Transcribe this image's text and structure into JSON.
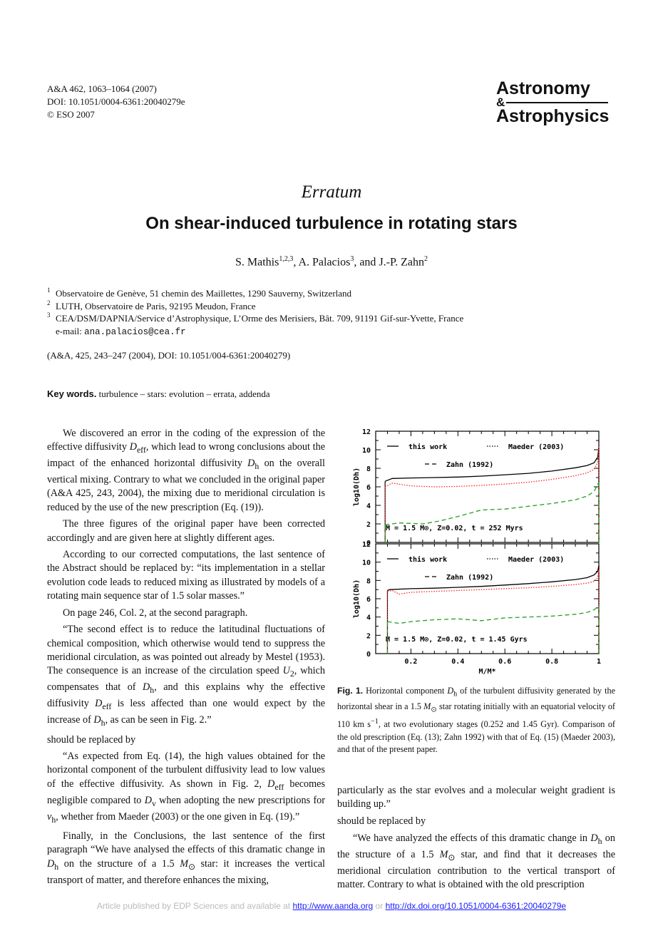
{
  "header": {
    "citation": "A&A 462, 1063–1064 (2007)",
    "doi": "DOI: 10.1051/0004-6361:20040279e",
    "copyright": "© ESO 2007",
    "journal_line1": "Astronomy",
    "journal_amp": "&",
    "journal_line2": "Astrophysics"
  },
  "section_label": "Erratum",
  "title": "On shear-induced turbulence in rotating stars",
  "authors": [
    {
      "name": "S. Mathis",
      "sup": "1,2,3",
      "sep": ", "
    },
    {
      "name": "A. Palacios",
      "sup": "3",
      "sep": ", and "
    },
    {
      "name": "J.-P. Zahn",
      "sup": "2",
      "sep": ""
    }
  ],
  "affiliations": [
    {
      "num": "1",
      "text": "Observatoire de Genève, 51 chemin des Maillettes, 1290 Sauverny, Switzerland"
    },
    {
      "num": "2",
      "text": "LUTH, Observatoire de Paris, 92195 Meudon, France"
    },
    {
      "num": "3",
      "text": "CEA/DSM/DAPNIA/Service d’Astrophysique, L’Orme des Merisiers, Bât. 709, 91191 Gif-sur-Yvette, France"
    }
  ],
  "email_label": "e-mail: ",
  "email": "ana.palacios@cea.fr",
  "original_ref": "(A&A, 425, 243–247 (2004), DOI: 10.1051/004-6361:20040279)",
  "keywords_label": "Key words.",
  "keywords": "turbulence – stars: evolution – errata, addenda",
  "left_paragraphs": [
    {
      "indent": true,
      "html": "We discovered an error in the coding of the expression of the effective diffusivity <i>D</i><sub>eff</sub>, which lead to wrong conclusions about the impact of the enhanced horizontal diffusivity <i>D</i><sub>h</sub> on the overall vertical mixing. Contrary to what we concluded in the original paper (A&amp;A 425, 243, 2004), the mixing due to meridional circulation is reduced by the use of the new prescription (Eq. (19))."
    },
    {
      "indent": true,
      "html": "The three figures of the original paper have been corrected accordingly and are given here at slightly different ages."
    },
    {
      "indent": true,
      "html": "According to our corrected computations, the last sentence of the Abstract should be replaced by: “its implementation in a stellar evolution code leads to reduced mixing as illustrated by models of a rotating main sequence star of 1.5 solar masses.”"
    },
    {
      "indent": true,
      "html": "On page 246, Col. 2, at the second paragraph."
    },
    {
      "indent": true,
      "html": "“The second effect is to reduce the latitudinal fluctuations of chemical composition, which otherwise would tend to suppress the meridional circulation, as was pointed out already by Mestel (1953). The consequence is an increase of the circulation speed <i>U</i><sub>2</sub>, which compensates that of <i>D</i><sub>h</sub>, and this explains why the effective diffusivity <i>D</i><sub>eff</sub> is less affected than one would expect by the increase of <i>D</i><sub>h</sub>, as can be seen in Fig. 2.”"
    },
    {
      "indent": false,
      "html": "should be replaced by"
    },
    {
      "indent": true,
      "html": "“As expected from Eq. (14), the high values obtained for the horizontal component of the turbulent diffusivity lead to low values of the effective diffusivity. As shown in Fig. 2, <i>D</i><sub>eff</sub> becomes negligible compared to <i>D</i><sub>v</sub> when adopting the new prescriptions for <i>ν</i><sub>h</sub>, whether from Maeder (2003) or the one given in Eq. (19).”"
    },
    {
      "indent": true,
      "html": "Finally, in the Conclusions, the last sentence of the first paragraph “We have analysed the effects of this dramatic change in <i>D</i><sub>h</sub> on the structure of a 1.5 <i>M</i><sub>⊙</sub> star: it increases the vertical transport of matter, and therefore enhances the mixing,"
    }
  ],
  "right_paragraphs": [
    {
      "indent": false,
      "html": "particularly as the star evolves and a molecular weight gradient is building up.”"
    },
    {
      "indent": false,
      "html": "should be replaced by"
    },
    {
      "indent": true,
      "html": "“We have analyzed the effects of this dramatic change in <i>D</i><sub>h</sub> on the structure of a 1.5 <i>M</i><sub>⊙</sub> star, and find that it decreases the meridional circulation contribution to the vertical transport of matter. Contrary to what is obtained with the old prescription"
    }
  ],
  "figure_caption": {
    "label": "Fig. 1.",
    "html": "Horizontal component <i>D</i><sub>h</sub> of the turbulent diffusivity generated by the horizontal shear in a 1.5 <i>M</i><sub>⊙</sub> star rotating initially with an equatorial velocity of 110 km s<sup>−1</sup>, at two evolutionary stages (0.252 and 1.45 Gyr). Comparison of the old prescription (Eq. (13); Zahn 1992) with that of Eq. (15) (Maeder 2003), and that of the present paper."
  },
  "footer": {
    "prefix": "Article published by EDP Sciences and available at ",
    "link1": "http://www.aanda.org",
    "middle": " or ",
    "link2": "http://dx.doi.org/10.1051/0004-6361:20040279e"
  },
  "chart_data": [
    {
      "type": "line",
      "xlabel": "M/M*",
      "ylabel": "log10(Dh)",
      "xlim": [
        0.05,
        1.0
      ],
      "ylim": [
        0,
        12
      ],
      "xticks": [
        "0.2",
        "0.4",
        "0.6",
        "0.8",
        "1"
      ],
      "yticks": [
        "0",
        "2",
        "4",
        "6",
        "8",
        "10",
        "12"
      ],
      "annotation": "M =  1.5 M⊙, Z=0.02, t = 252 Myrs",
      "legend": [
        {
          "label": "this work",
          "style": "solid"
        },
        {
          "label": "Maeder (2003)",
          "style": "dotted"
        },
        {
          "label": "Zahn (1992)",
          "style": "dashed"
        }
      ],
      "series": [
        {
          "name": "this work",
          "color": "#000000",
          "x": [
            0.09,
            0.12,
            0.2,
            0.3,
            0.4,
            0.5,
            0.6,
            0.7,
            0.8,
            0.9,
            0.95,
            0.98,
            0.995,
            1.0
          ],
          "y": [
            6.6,
            6.9,
            6.95,
            7.0,
            7.05,
            7.15,
            7.3,
            7.45,
            7.7,
            8.05,
            8.3,
            8.6,
            9.2,
            10.2
          ]
        },
        {
          "name": "Maeder (2003)",
          "color": "#ff2020",
          "x": [
            0.09,
            0.12,
            0.2,
            0.3,
            0.4,
            0.5,
            0.6,
            0.7,
            0.8,
            0.9,
            0.95,
            0.98,
            0.995,
            1.0
          ],
          "y": [
            6.0,
            6.4,
            6.1,
            6.0,
            6.05,
            6.15,
            6.3,
            6.5,
            6.8,
            7.2,
            7.5,
            7.9,
            8.6,
            10.3
          ]
        },
        {
          "name": "Zahn (1992)",
          "color": "#20a020",
          "x": [
            0.09,
            0.15,
            0.25,
            0.32,
            0.4,
            0.5,
            0.6,
            0.7,
            0.8,
            0.9,
            0.95,
            0.98,
            1.0
          ],
          "y": [
            1.9,
            2.1,
            2.0,
            2.3,
            2.8,
            3.5,
            3.6,
            3.9,
            4.2,
            4.6,
            5.0,
            5.5,
            6.5
          ]
        }
      ]
    },
    {
      "type": "line",
      "xlabel": "M/M*",
      "ylabel": "log10(Dh)",
      "xlim": [
        0.05,
        1.0
      ],
      "ylim": [
        0,
        12
      ],
      "xticks": [
        "0.2",
        "0.4",
        "0.6",
        "0.8",
        "1"
      ],
      "yticks": [
        "0",
        "2",
        "4",
        "6",
        "8",
        "10",
        "12"
      ],
      "annotation": "M =  1.5 M⊙, Z=0.02, t = 1.45 Gyrs",
      "legend": [
        {
          "label": "this work",
          "style": "solid"
        },
        {
          "label": "Maeder (2003)",
          "style": "dotted"
        },
        {
          "label": "Zahn (1992)",
          "style": "dashed"
        }
      ],
      "series": [
        {
          "name": "this work",
          "color": "#000000",
          "x": [
            0.1,
            0.11,
            0.2,
            0.3,
            0.4,
            0.5,
            0.6,
            0.7,
            0.8,
            0.9,
            0.95,
            0.98,
            0.995,
            1.0
          ],
          "y": [
            6.9,
            7.0,
            7.1,
            7.15,
            7.25,
            7.35,
            7.5,
            7.65,
            7.85,
            8.1,
            8.3,
            8.6,
            9.0,
            9.6
          ]
        },
        {
          "name": "Maeder (2003)",
          "color": "#ff2020",
          "x": [
            0.1,
            0.12,
            0.15,
            0.2,
            0.3,
            0.4,
            0.5,
            0.6,
            0.7,
            0.8,
            0.9,
            0.95,
            0.98,
            0.995,
            1.0
          ],
          "y": [
            6.8,
            6.9,
            6.5,
            6.7,
            6.8,
            6.9,
            7.0,
            7.1,
            7.2,
            7.35,
            7.55,
            7.7,
            7.9,
            8.3,
            9.2
          ]
        },
        {
          "name": "Zahn (1992)",
          "color": "#20a020",
          "x": [
            0.1,
            0.15,
            0.2,
            0.3,
            0.4,
            0.5,
            0.6,
            0.7,
            0.8,
            0.9,
            0.95,
            0.98,
            1.0
          ],
          "y": [
            3.5,
            3.3,
            3.5,
            3.7,
            3.8,
            3.6,
            3.9,
            4.0,
            4.1,
            4.3,
            4.5,
            4.8,
            5.2
          ]
        }
      ]
    }
  ]
}
